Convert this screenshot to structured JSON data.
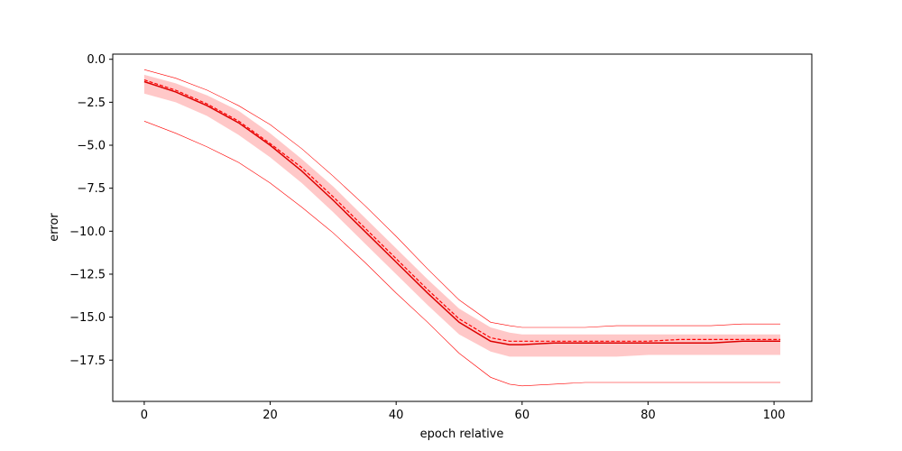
{
  "chart_data": {
    "type": "line",
    "title": "",
    "xlabel": "epoch relative",
    "ylabel": "error",
    "xlim": [
      -5,
      106
    ],
    "ylim": [
      -19.9,
      0.3
    ],
    "xticks": [
      0,
      20,
      40,
      60,
      80,
      100
    ],
    "xtick_labels": [
      "0",
      "20",
      "40",
      "60",
      "80",
      "100"
    ],
    "yticks": [
      0.0,
      -2.5,
      -5.0,
      -7.5,
      -10.0,
      -12.5,
      -15.0,
      -17.5
    ],
    "ytick_labels": [
      "0.0",
      "−2.5",
      "−5.0",
      "−7.5",
      "−10.0",
      "−12.5",
      "−15.0",
      "−17.5"
    ],
    "grid": false,
    "color": "#ff0000",
    "band_color": "#ffc8c8",
    "x": [
      0,
      5,
      10,
      15,
      20,
      25,
      30,
      35,
      40,
      45,
      50,
      55,
      58,
      60,
      65,
      70,
      75,
      80,
      85,
      90,
      95,
      101
    ],
    "series": [
      {
        "style": "solid",
        "values": [
          -1.3,
          -1.9,
          -2.7,
          -3.7,
          -5.0,
          -6.5,
          -8.2,
          -10.0,
          -11.8,
          -13.6,
          -15.3,
          -16.4,
          -16.6,
          -16.6,
          -16.5,
          -16.5,
          -16.5,
          -16.5,
          -16.5,
          -16.5,
          -16.4,
          -16.4
        ]
      },
      {
        "style": "dashed",
        "values": [
          -1.2,
          -1.8,
          -2.6,
          -3.6,
          -4.9,
          -6.3,
          -8.0,
          -9.8,
          -11.6,
          -13.4,
          -15.1,
          -16.2,
          -16.4,
          -16.4,
          -16.4,
          -16.4,
          -16.4,
          -16.4,
          -16.3,
          -16.3,
          -16.3,
          -16.3
        ]
      },
      {
        "style": "band",
        "upper": [
          -0.9,
          -1.4,
          -2.1,
          -3.0,
          -4.3,
          -5.8,
          -7.4,
          -9.2,
          -11.0,
          -12.8,
          -14.5,
          -15.6,
          -15.9,
          -16.0,
          -16.0,
          -16.0,
          -16.0,
          -16.0,
          -16.0,
          -16.0,
          -16.0,
          -16.0
        ],
        "lower": [
          -2.0,
          -2.5,
          -3.3,
          -4.4,
          -5.7,
          -7.2,
          -8.9,
          -10.7,
          -12.5,
          -14.3,
          -16.0,
          -17.0,
          -17.3,
          -17.3,
          -17.3,
          -17.3,
          -17.3,
          -17.2,
          -17.2,
          -17.2,
          -17.2,
          -17.2
        ]
      },
      {
        "style": "thin",
        "values": [
          -0.6,
          -1.1,
          -1.8,
          -2.7,
          -3.8,
          -5.2,
          -6.8,
          -8.5,
          -10.3,
          -12.2,
          -14.0,
          -15.3,
          -15.5,
          -15.6,
          -15.6,
          -15.6,
          -15.5,
          -15.5,
          -15.5,
          -15.5,
          -15.4,
          -15.4
        ]
      },
      {
        "style": "thin",
        "values": [
          -3.6,
          -4.3,
          -5.1,
          -6.0,
          -7.2,
          -8.6,
          -10.1,
          -11.8,
          -13.6,
          -15.3,
          -17.1,
          -18.5,
          -18.9,
          -19.0,
          -18.9,
          -18.8,
          -18.8,
          -18.8,
          -18.8,
          -18.8,
          -18.8,
          -18.8
        ]
      }
    ]
  }
}
